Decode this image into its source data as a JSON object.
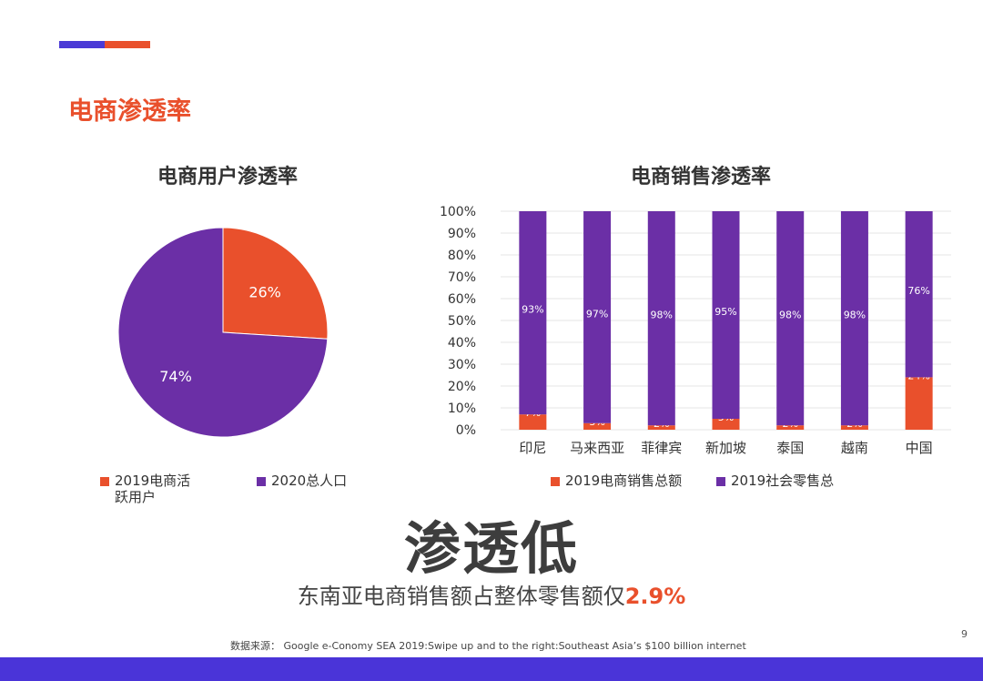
{
  "colors": {
    "purple": "#6b2fa6",
    "orange": "#e9502c",
    "blue": "#4b3ad6",
    "band": "#4a34d8"
  },
  "section_title": "电商渗透率",
  "pie": {
    "title": "电商用户渗透率",
    "legend": [
      {
        "label": "2019电商活跃用户",
        "color": "#e9502c"
      },
      {
        "label": "2020总人口",
        "color": "#6b2fa6"
      }
    ]
  },
  "bar": {
    "title": "电商销售渗透率",
    "legend": [
      {
        "label": "2019电商销售总额",
        "color": "#e9502c"
      },
      {
        "label": "2019社会零售总",
        "color": "#6b2fa6"
      }
    ]
  },
  "chart_data": [
    {
      "type": "pie",
      "title": "电商用户渗透率",
      "slices": [
        {
          "label": "2019电商活跃用户",
          "value": 26,
          "display": "26%",
          "color": "#e9502c"
        },
        {
          "label": "2020总人口",
          "value": 74,
          "display": "74%",
          "color": "#6b2fa6"
        }
      ]
    },
    {
      "type": "bar",
      "stacked": true,
      "title": "电商销售渗透率",
      "categories": [
        "印尼",
        "马来西亚",
        "菲律宾",
        "新加坡",
        "泰国",
        "越南",
        "中国"
      ],
      "series": [
        {
          "name": "2019电商销售总额",
          "values": [
            7,
            3,
            2,
            5,
            2,
            2,
            24
          ],
          "color": "#e9502c"
        },
        {
          "name": "2019社会零售总",
          "values": [
            93,
            97,
            98,
            95,
            98,
            98,
            76
          ],
          "color": "#6b2fa6"
        }
      ],
      "ylim": [
        0,
        100
      ],
      "yticks": [
        "0%",
        "10%",
        "20%",
        "30%",
        "40%",
        "50%",
        "60%",
        "70%",
        "80%",
        "90%",
        "100%"
      ],
      "grid": true
    }
  ],
  "headline": "渗透低",
  "subheadline": {
    "text": "东南亚电商销售额占整体零售额仅",
    "highlight": "2.9%"
  },
  "footnote": "数据来源：  Google e-Conomy SEA 2019:Swipe up and to the right:Southeast Asia’s $100 billion internet",
  "page_number": "9"
}
